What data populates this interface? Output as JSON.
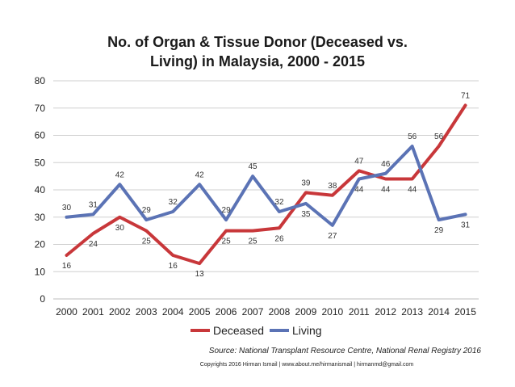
{
  "chart_data": {
    "type": "line",
    "title_lines": [
      "No. of Organ & Tissue Donor (Deceased vs.",
      "Living) in Malaysia, 2000 - 2015"
    ],
    "x": [
      "2000",
      "2001",
      "2002",
      "2003",
      "2004",
      "2005",
      "2006",
      "2007",
      "2008",
      "2009",
      "2010",
      "2011",
      "2012",
      "2013",
      "2014",
      "2015"
    ],
    "ylim": [
      0,
      80
    ],
    "yticks": [
      0,
      10,
      20,
      30,
      40,
      50,
      60,
      70,
      80
    ],
    "grid": true,
    "legend_position": "bottom",
    "series": [
      {
        "name": "Deceased",
        "color": "#c8373a",
        "values": [
          16,
          24,
          30,
          25,
          16,
          13,
          25,
          25,
          26,
          39,
          38,
          47,
          44,
          44,
          56,
          71
        ]
      },
      {
        "name": "Living",
        "color": "#5b73b5",
        "values": [
          30,
          31,
          42,
          29,
          32,
          42,
          29,
          45,
          32,
          35,
          27,
          44,
          46,
          56,
          29,
          31
        ]
      }
    ]
  },
  "source_note": "Source: National Transplant Resource Centre, National Renal Registry 2016",
  "copyright": "Copyrights 2016 Hirman Ismail | www.about.me/hirmanismail | hirmanmd@gmail.com"
}
